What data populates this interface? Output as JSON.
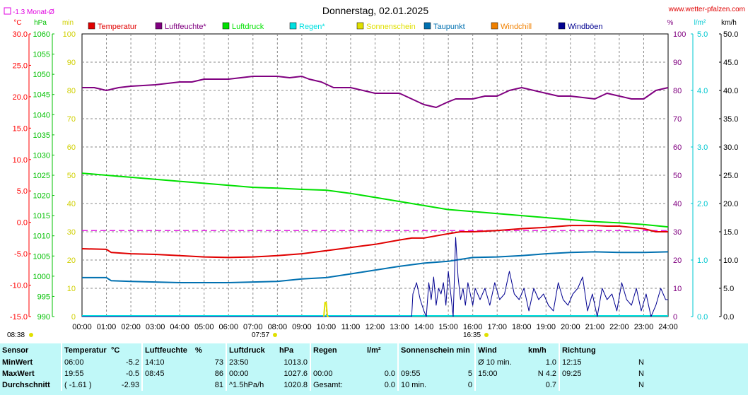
{
  "header": {
    "title": "Donnerstag, 02.01.2025",
    "site": "www.wetter-pfalzen.com",
    "month_avg_label": "-1.3 Monat-Ø"
  },
  "units": {
    "c": "°C",
    "hpa": "hPa",
    "min": "min",
    "pct": "%",
    "lm2": "l/m²",
    "kmh": "km/h"
  },
  "legend": [
    {
      "name": "Temperatur",
      "color": "#e00000"
    },
    {
      "name": "Luftfeuchte*",
      "color": "#800080"
    },
    {
      "name": "Luftdruck",
      "color": "#00e000"
    },
    {
      "name": "Regen*",
      "color": "#00e0e0"
    },
    {
      "name": "Sonnenschein",
      "color": "#e0e000"
    },
    {
      "name": "Taupunkt",
      "color": "#0070b0"
    },
    {
      "name": "Windchill",
      "color": "#f08000"
    },
    {
      "name": "Windböen",
      "color": "#000090"
    }
  ],
  "sun": {
    "sunrise": "07:57",
    "sunset": "16:35",
    "mark_left": "08:38"
  },
  "chart_data": {
    "type": "line",
    "x_unit": "hours",
    "x_ticks": [
      "00:00",
      "01:00",
      "02:00",
      "03:00",
      "04:00",
      "05:00",
      "06:00",
      "07:00",
      "08:00",
      "09:00",
      "10:00",
      "11:00",
      "12:00",
      "13:00",
      "14:00",
      "15:00",
      "16:00",
      "17:00",
      "18:00",
      "19:00",
      "20:00",
      "21:00",
      "22:00",
      "23:00",
      "24:00"
    ],
    "xlim": [
      0,
      24
    ],
    "grid": true,
    "axes": {
      "temp": {
        "ticks": [
          "30.0",
          "25.0",
          "20.0",
          "15.0",
          "10.0",
          "5.0",
          "0.0",
          "-5.0",
          "-10.0",
          "-15.0"
        ],
        "lim": [
          -15,
          30
        ],
        "color": "#ff0000"
      },
      "hpa": {
        "ticks": [
          "1060",
          "1055",
          "1050",
          "1045",
          "1040",
          "1035",
          "1030",
          "1025",
          "1020",
          "1015",
          "1010",
          "1005",
          "1000",
          "995",
          "990"
        ],
        "lim": [
          990,
          1060
        ],
        "color": "#00c000"
      },
      "min": {
        "ticks": [
          "100",
          "90",
          "80",
          "70",
          "60",
          "50",
          "40",
          "30",
          "20",
          "10",
          "0"
        ],
        "lim": [
          0,
          100
        ],
        "color": "#d0d000"
      },
      "pct": {
        "ticks": [
          "100",
          "90",
          "80",
          "70",
          "60",
          "50",
          "40",
          "30",
          "20",
          "10",
          "0"
        ],
        "lim": [
          0,
          100
        ],
        "color": "#800080"
      },
      "rain": {
        "ticks": [
          "5.0",
          "4.0",
          "3.0",
          "2.0",
          "1.0",
          "0.0"
        ],
        "lim": [
          0,
          5
        ],
        "color": "#00c8d0"
      },
      "kmh": {
        "ticks": [
          "50.0",
          "45.0",
          "40.0",
          "35.0",
          "30.0",
          "25.0",
          "20.0",
          "15.0",
          "10.0",
          "5.0",
          "0.0"
        ],
        "lim": [
          0,
          50
        ],
        "color": "#000000"
      }
    },
    "month_avg_temp": -1.3,
    "series": [
      {
        "name": "Luftfeuchte*",
        "axis": "pct",
        "color": "#800080",
        "x": [
          0,
          0.5,
          1,
          1.5,
          2,
          3,
          4,
          4.5,
          5,
          6,
          7,
          8,
          8.5,
          9,
          9.3,
          9.8,
          10.3,
          11,
          12,
          13,
          13.5,
          14,
          14.5,
          15,
          15.3,
          16,
          16.5,
          17,
          17.5,
          18,
          19,
          19.5,
          20,
          21,
          21.5,
          22,
          22.5,
          23,
          23.5,
          24
        ],
        "y": [
          81,
          81,
          80,
          81,
          81.5,
          82,
          83,
          83,
          84,
          84,
          85,
          85,
          84.5,
          85,
          84,
          83,
          81,
          81,
          79,
          79,
          77,
          75,
          74,
          76,
          77,
          77,
          78,
          78,
          80,
          81,
          79,
          78,
          78,
          77,
          79,
          78,
          77,
          77,
          80,
          81
        ]
      },
      {
        "name": "Luftdruck",
        "axis": "hpa",
        "color": "#00e000",
        "x": [
          0,
          1,
          2,
          3,
          4,
          5,
          6,
          7,
          8,
          9,
          10,
          11,
          12,
          13,
          14,
          15,
          16,
          17,
          18,
          19,
          20,
          21,
          22,
          23,
          24
        ],
        "y": [
          1025.5,
          1025,
          1024.5,
          1024,
          1023.5,
          1023,
          1022.5,
          1022,
          1021.8,
          1021.5,
          1021.3,
          1020.5,
          1019.5,
          1018.5,
          1017.5,
          1016.5,
          1016,
          1015.5,
          1015,
          1014.5,
          1014,
          1013.5,
          1013.2,
          1012.8,
          1012.2
        ]
      },
      {
        "name": "Temperatur",
        "axis": "temp",
        "color": "#e00000",
        "x": [
          0,
          1,
          1.2,
          2,
          3,
          4,
          5,
          6,
          7,
          8,
          9,
          10,
          11,
          12,
          13,
          13.5,
          14,
          15,
          15.5,
          16,
          17,
          18,
          19,
          20,
          20.5,
          21,
          21.5,
          22,
          23,
          23.5,
          24
        ],
        "y": [
          -4.2,
          -4.3,
          -4.8,
          -5,
          -5.1,
          -5.3,
          -5.5,
          -5.6,
          -5.5,
          -5.3,
          -5,
          -4.5,
          -4,
          -3.5,
          -2.8,
          -2.5,
          -2.5,
          -1.8,
          -1.5,
          -1.5,
          -1.3,
          -1,
          -0.8,
          -0.5,
          -0.5,
          -0.5,
          -0.6,
          -0.6,
          -1,
          -1.5,
          -1.5
        ]
      },
      {
        "name": "Taupunkt",
        "axis": "temp",
        "color": "#0070b0",
        "x": [
          0,
          1,
          1.2,
          2,
          3,
          4,
          5,
          6,
          7,
          8,
          9,
          10,
          11,
          12,
          13,
          14,
          15,
          16,
          17,
          18,
          19,
          20,
          21,
          22,
          23,
          24
        ],
        "y": [
          -8.8,
          -8.8,
          -9.3,
          -9.4,
          -9.5,
          -9.6,
          -9.6,
          -9.6,
          -9.5,
          -9.4,
          -9,
          -8.8,
          -8.2,
          -7.6,
          -7,
          -6.5,
          -6.2,
          -5.6,
          -5.5,
          -5.3,
          -5,
          -4.8,
          -4.7,
          -4.8,
          -4.8,
          -4.7
        ]
      },
      {
        "name": "Windböen",
        "axis": "kmh",
        "color": "#000090",
        "x": [
          0,
          13.5,
          13.55,
          13.7,
          13.85,
          14,
          14.1,
          14.2,
          14.3,
          14.4,
          14.5,
          14.6,
          14.7,
          14.8,
          14.9,
          15,
          15.1,
          15.2,
          15.3,
          15.4,
          15.5,
          15.6,
          15.7,
          15.8,
          15.9,
          16,
          16.1,
          16.2,
          16.3,
          16.5,
          16.7,
          16.9,
          17.1,
          17.3,
          17.5,
          17.7,
          17.9,
          18.1,
          18.3,
          18.5,
          18.7,
          18.9,
          19.1,
          19.3,
          19.5,
          19.7,
          19.9,
          20.1,
          20.3,
          20.5,
          20.7,
          20.9,
          21.1,
          21.3,
          21.5,
          21.7,
          21.9,
          22.1,
          22.3,
          22.5,
          22.7,
          22.9,
          23.1,
          23.3,
          23.5,
          23.7,
          23.9,
          24
        ],
        "y": [
          0,
          0,
          4,
          6,
          3,
          1,
          0,
          6,
          3,
          7,
          2,
          5,
          4,
          6,
          2,
          8,
          4,
          0,
          14,
          7,
          3,
          5,
          2,
          6,
          4,
          2,
          5,
          4,
          3,
          5,
          2,
          6,
          3,
          4,
          8,
          4,
          3,
          5,
          1,
          5,
          3,
          4,
          2,
          1,
          6,
          3,
          2,
          4,
          5,
          7,
          1,
          4,
          0,
          5,
          3,
          4,
          1,
          6,
          3,
          2,
          5,
          1,
          4,
          0,
          2,
          5,
          3,
          3
        ]
      },
      {
        "name": "Sonnenschein",
        "axis": "min",
        "color": "#e0e000",
        "x": [
          9.9,
          9.95,
          10.0,
          10.05,
          10.1
        ],
        "y": [
          0,
          5,
          5,
          0,
          0
        ]
      }
    ]
  },
  "stats": {
    "headers": [
      "Sensor",
      "Temperatur",
      "°C",
      "Luftfeuchte",
      "%",
      "Luftdruck",
      "hPa",
      "Regen",
      "l/m²",
      "Sonnenschein min",
      "Wind",
      "km/h",
      "Richtung"
    ],
    "rows": [
      {
        "label": "MinWert",
        "t_time": "06:00",
        "t_val": "-5.2",
        "h_time": "14:10",
        "h_val": "73",
        "p_time": "23:50",
        "p_val": "1013.0",
        "r_time": "",
        "r_val": "",
        "s_time": "",
        "s_val": "",
        "w_label": "Ø 10 min.",
        "w_val": "1.0",
        "d_time": "12:15",
        "d_val": "N"
      },
      {
        "label": "MaxWert",
        "t_time": "19:55",
        "t_val": "-0.5",
        "h_time": "08:45",
        "h_val": "86",
        "p_time": "00:00",
        "p_val": "1027.6",
        "r_time": "00:00",
        "r_val": "0.0",
        "s_time": "09:55",
        "s_val": "5",
        "w_label": "15:00",
        "w_val": "N 4.2",
        "d_time": "09:25",
        "d_val": "N"
      },
      {
        "label": "Durchschnitt",
        "t_time": "( -1.61 )",
        "t_val": "-2.93",
        "h_time": "",
        "h_val": "81",
        "p_time": "^1.5hPa/h",
        "p_val": "1020.8",
        "r_time": "Gesamt:",
        "r_val": "0.0",
        "s_time": "10 min.",
        "s_val": "0",
        "w_label": "",
        "w_val": "0.7",
        "d_time": "",
        "d_val": "N"
      }
    ]
  }
}
